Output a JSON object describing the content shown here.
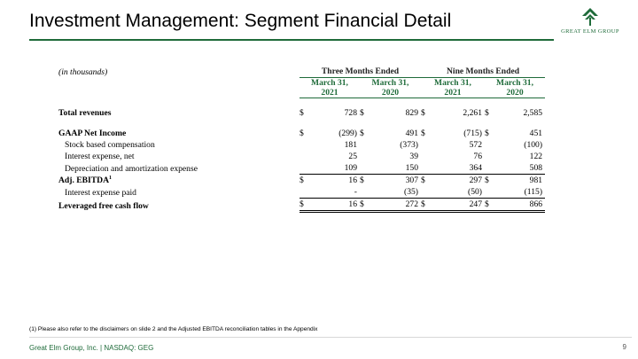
{
  "header": {
    "title": "Investment Management: Segment Financial Detail"
  },
  "logo": {
    "text": "GREAT ELM GROUP",
    "color": "#1f6b3a"
  },
  "table": {
    "units": "(in thousands)",
    "groups": [
      "Three Months Ended",
      "Nine Months Ended"
    ],
    "dates": [
      "March 31, 2021",
      "March 31, 2020",
      "March 31, 2021",
      "March 31, 2020"
    ],
    "rows": [
      {
        "label": "Total revenues",
        "values": [
          "728",
          "829",
          "2,261",
          "2,585"
        ]
      },
      {
        "label": "GAAP Net Income",
        "values": [
          "(299)",
          "491",
          "(715)",
          "451"
        ]
      },
      {
        "label": "Stock based compensation",
        "values": [
          "181",
          "(373)",
          "572",
          "(100)"
        ]
      },
      {
        "label": "Interest expense, net",
        "values": [
          "25",
          "39",
          "76",
          "122"
        ]
      },
      {
        "label": "Depreciation and amortization expense",
        "values": [
          "109",
          "150",
          "364",
          "508"
        ]
      },
      {
        "label": "Adj. EBITDA",
        "sup": "1",
        "values": [
          "16",
          "307",
          "297",
          "981"
        ]
      },
      {
        "label": "Interest expense paid",
        "values": [
          "-",
          "(35)",
          "(50)",
          "(115)"
        ]
      },
      {
        "label": "Leveraged free cash flow",
        "values": [
          "16",
          "272",
          "247",
          "866"
        ]
      }
    ],
    "currency_symbol": "$"
  },
  "footnote": "(1) Please also refer to the disclaimers on slide 2 and the Adjusted EBITDA reconciliation tables in the Appendix",
  "footer": {
    "company": "Great Elm Group, Inc. | NASDAQ: GEG",
    "page": "9"
  }
}
